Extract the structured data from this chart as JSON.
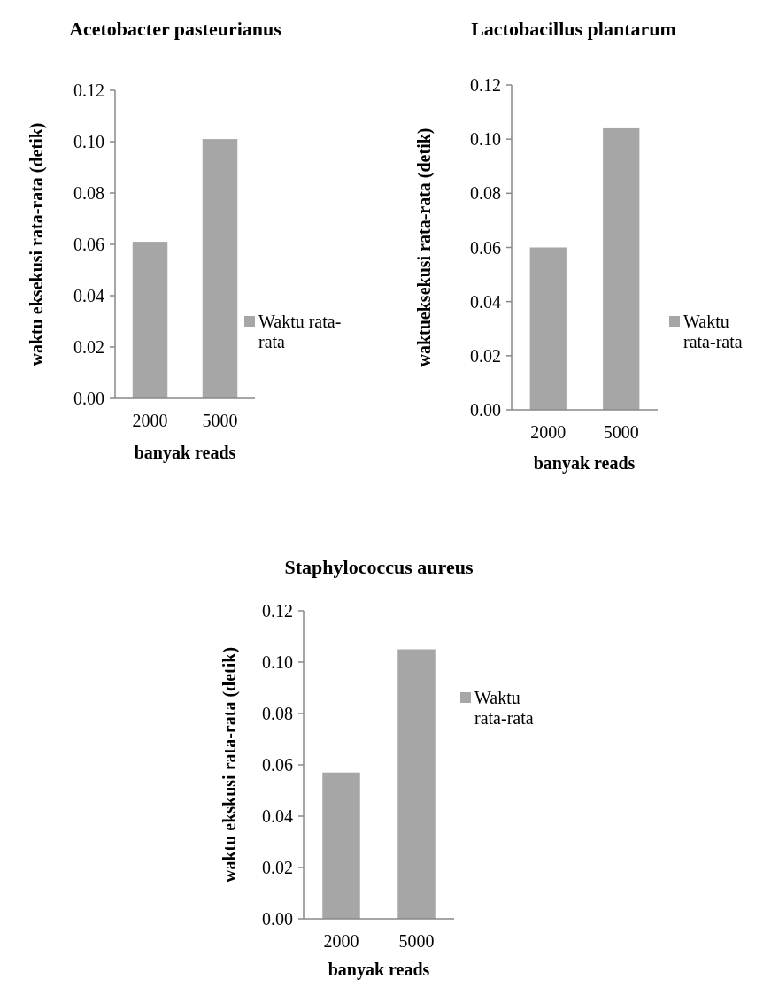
{
  "chart_data": [
    {
      "type": "bar",
      "title": "Acetobacter pasteurianus",
      "xlabel": "banyak reads",
      "ylabel": "waktu eksekusi rata-rata (detik)",
      "categories": [
        "2000",
        "5000"
      ],
      "series": [
        {
          "name": "Waktu rata-rata",
          "color": "#a6a6a6",
          "values": [
            0.061,
            0.101
          ]
        }
      ],
      "ylim": [
        0,
        0.12
      ],
      "yticks": [
        {
          "value": 0,
          "label": "0.00"
        },
        {
          "value": 0.02,
          "label": "0.02"
        },
        {
          "value": 0.04,
          "label": "0.04"
        },
        {
          "value": 0.06,
          "label": "0.06"
        },
        {
          "value": 0.08,
          "label": "0.08"
        },
        {
          "value": 0.1,
          "label": "0.10"
        },
        {
          "value": 0.12,
          "label": "0.12"
        }
      ],
      "legend": "right",
      "grid": false
    },
    {
      "type": "bar",
      "title": "Lactobacillus plantarum",
      "xlabel": "banyak reads",
      "ylabel": "waktueksekusi rata-rata (detik)",
      "categories": [
        "2000",
        "5000"
      ],
      "series": [
        {
          "name": "Waktu rata-rata",
          "color": "#a6a6a6",
          "values": [
            0.06,
            0.104
          ]
        }
      ],
      "ylim": [
        0,
        0.12
      ],
      "yticks": [
        {
          "value": 0,
          "label": "0.00"
        },
        {
          "value": 0.02,
          "label": "0.02"
        },
        {
          "value": 0.04,
          "label": "0.04"
        },
        {
          "value": 0.06,
          "label": "0.06"
        },
        {
          "value": 0.08,
          "label": "0.08"
        },
        {
          "value": 0.1,
          "label": "0.10"
        },
        {
          "value": 0.12,
          "label": "0.12"
        }
      ],
      "legend": "right",
      "grid": false
    },
    {
      "type": "bar",
      "title": "Staphylococcus aureus",
      "xlabel": "banyak reads",
      "ylabel": "waktu ekskusi rata-rata (detik)",
      "categories": [
        "2000",
        "5000"
      ],
      "series": [
        {
          "name": "Waktu rata-rata",
          "color": "#a6a6a6",
          "values": [
            0.057,
            0.105
          ]
        }
      ],
      "ylim": [
        0,
        0.12
      ],
      "yticks": [
        {
          "value": 0,
          "label": "0.00"
        },
        {
          "value": 0.02,
          "label": "0.02"
        },
        {
          "value": 0.04,
          "label": "0.04"
        },
        {
          "value": 0.06,
          "label": "0.06"
        },
        {
          "value": 0.08,
          "label": "0.08"
        },
        {
          "value": 0.1,
          "label": "0.10"
        },
        {
          "value": 0.12,
          "label": "0.12"
        }
      ],
      "legend": "right",
      "grid": false
    }
  ]
}
